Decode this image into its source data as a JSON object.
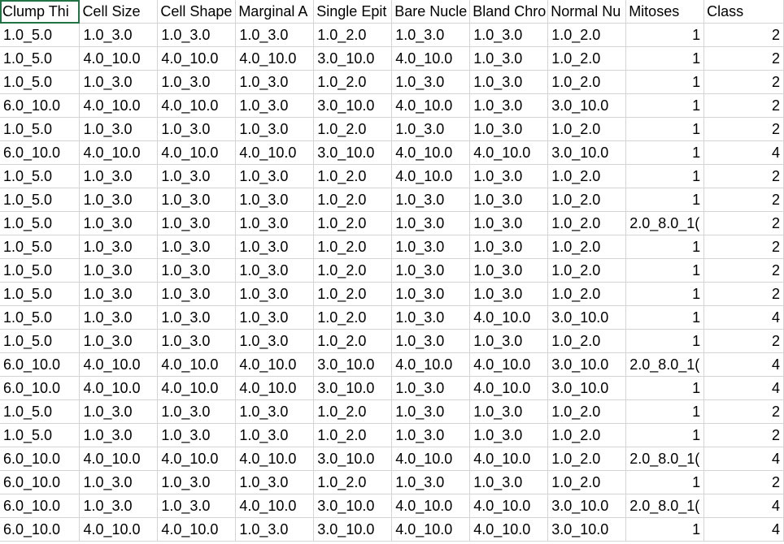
{
  "headers": [
    "Clump Thi",
    "Cell Size",
    "Cell Shape",
    "Marginal A",
    "Single Epit",
    "Bare Nucle",
    "Bland Chro",
    "Normal Nu",
    "Mitoses",
    "Class"
  ],
  "rows": [
    [
      "1.0_5.0",
      "1.0_3.0",
      "1.0_3.0",
      "1.0_3.0",
      "1.0_2.0",
      "1.0_3.0",
      "1.0_3.0",
      "1.0_2.0",
      "1",
      "2"
    ],
    [
      "1.0_5.0",
      "4.0_10.0",
      "4.0_10.0",
      "4.0_10.0",
      "3.0_10.0",
      "4.0_10.0",
      "1.0_3.0",
      "1.0_2.0",
      "1",
      "2"
    ],
    [
      "1.0_5.0",
      "1.0_3.0",
      "1.0_3.0",
      "1.0_3.0",
      "1.0_2.0",
      "1.0_3.0",
      "1.0_3.0",
      "1.0_2.0",
      "1",
      "2"
    ],
    [
      "6.0_10.0",
      "4.0_10.0",
      "4.0_10.0",
      "1.0_3.0",
      "3.0_10.0",
      "4.0_10.0",
      "1.0_3.0",
      "3.0_10.0",
      "1",
      "2"
    ],
    [
      "1.0_5.0",
      "1.0_3.0",
      "1.0_3.0",
      "1.0_3.0",
      "1.0_2.0",
      "1.0_3.0",
      "1.0_3.0",
      "1.0_2.0",
      "1",
      "2"
    ],
    [
      "6.0_10.0",
      "4.0_10.0",
      "4.0_10.0",
      "4.0_10.0",
      "3.0_10.0",
      "4.0_10.0",
      "4.0_10.0",
      "3.0_10.0",
      "1",
      "4"
    ],
    [
      "1.0_5.0",
      "1.0_3.0",
      "1.0_3.0",
      "1.0_3.0",
      "1.0_2.0",
      "4.0_10.0",
      "1.0_3.0",
      "1.0_2.0",
      "1",
      "2"
    ],
    [
      "1.0_5.0",
      "1.0_3.0",
      "1.0_3.0",
      "1.0_3.0",
      "1.0_2.0",
      "1.0_3.0",
      "1.0_3.0",
      "1.0_2.0",
      "1",
      "2"
    ],
    [
      "1.0_5.0",
      "1.0_3.0",
      "1.0_3.0",
      "1.0_3.0",
      "1.0_2.0",
      "1.0_3.0",
      "1.0_3.0",
      "1.0_2.0",
      "2.0_8.0_1(",
      "2"
    ],
    [
      "1.0_5.0",
      "1.0_3.0",
      "1.0_3.0",
      "1.0_3.0",
      "1.0_2.0",
      "1.0_3.0",
      "1.0_3.0",
      "1.0_2.0",
      "1",
      "2"
    ],
    [
      "1.0_5.0",
      "1.0_3.0",
      "1.0_3.0",
      "1.0_3.0",
      "1.0_2.0",
      "1.0_3.0",
      "1.0_3.0",
      "1.0_2.0",
      "1",
      "2"
    ],
    [
      "1.0_5.0",
      "1.0_3.0",
      "1.0_3.0",
      "1.0_3.0",
      "1.0_2.0",
      "1.0_3.0",
      "1.0_3.0",
      "1.0_2.0",
      "1",
      "2"
    ],
    [
      "1.0_5.0",
      "1.0_3.0",
      "1.0_3.0",
      "1.0_3.0",
      "1.0_2.0",
      "1.0_3.0",
      "4.0_10.0",
      "3.0_10.0",
      "1",
      "4"
    ],
    [
      "1.0_5.0",
      "1.0_3.0",
      "1.0_3.0",
      "1.0_3.0",
      "1.0_2.0",
      "1.0_3.0",
      "1.0_3.0",
      "1.0_2.0",
      "1",
      "2"
    ],
    [
      "6.0_10.0",
      "4.0_10.0",
      "4.0_10.0",
      "4.0_10.0",
      "3.0_10.0",
      "4.0_10.0",
      "4.0_10.0",
      "3.0_10.0",
      "2.0_8.0_1(",
      "4"
    ],
    [
      "6.0_10.0",
      "4.0_10.0",
      "4.0_10.0",
      "4.0_10.0",
      "3.0_10.0",
      "1.0_3.0",
      "4.0_10.0",
      "3.0_10.0",
      "1",
      "4"
    ],
    [
      "1.0_5.0",
      "1.0_3.0",
      "1.0_3.0",
      "1.0_3.0",
      "1.0_2.0",
      "1.0_3.0",
      "1.0_3.0",
      "1.0_2.0",
      "1",
      "2"
    ],
    [
      "1.0_5.0",
      "1.0_3.0",
      "1.0_3.0",
      "1.0_3.0",
      "1.0_2.0",
      "1.0_3.0",
      "1.0_3.0",
      "1.0_2.0",
      "1",
      "2"
    ],
    [
      "6.0_10.0",
      "4.0_10.0",
      "4.0_10.0",
      "4.0_10.0",
      "3.0_10.0",
      "4.0_10.0",
      "4.0_10.0",
      "1.0_2.0",
      "2.0_8.0_1(",
      "4"
    ],
    [
      "6.0_10.0",
      "1.0_3.0",
      "1.0_3.0",
      "1.0_3.0",
      "1.0_2.0",
      "1.0_3.0",
      "1.0_3.0",
      "1.0_2.0",
      "1",
      "2"
    ],
    [
      "6.0_10.0",
      "1.0_3.0",
      "1.0_3.0",
      "4.0_10.0",
      "3.0_10.0",
      "4.0_10.0",
      "4.0_10.0",
      "3.0_10.0",
      "2.0_8.0_1(",
      "4"
    ],
    [
      "6.0_10.0",
      "4.0_10.0",
      "4.0_10.0",
      "1.0_3.0",
      "3.0_10.0",
      "4.0_10.0",
      "4.0_10.0",
      "3.0_10.0",
      "1",
      "4"
    ]
  ],
  "numeric_columns": [
    8,
    9
  ],
  "colors": {
    "gridline": "#d4d4d4",
    "active_cell_border": "#217346",
    "text": "#000000",
    "background": "#ffffff"
  }
}
